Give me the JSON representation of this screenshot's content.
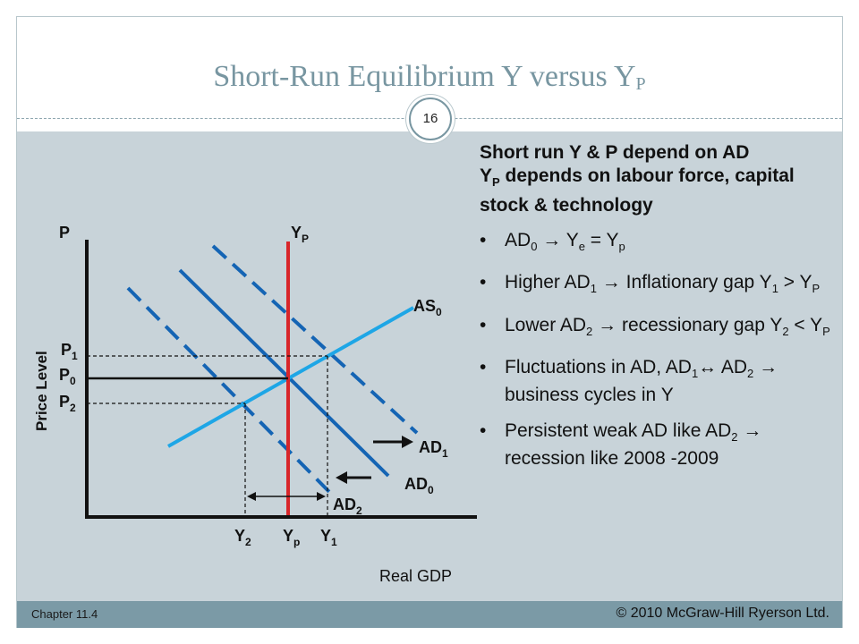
{
  "slide": {
    "title_main": "Short-Run Equilibrium Y  versus Y",
    "title_sub": "P",
    "page_number": "16",
    "footer_left": "Chapter 11.4",
    "footer_right": "© 2010 McGraw-Hill Ryerson Ltd."
  },
  "graph": {
    "y_axis_letter": "P",
    "y_axis_title": "Price Level",
    "x_axis_title": "Real GDP",
    "yp_top": {
      "main": "Y",
      "sub": "P"
    },
    "as_label": {
      "main": "AS",
      "sub": "0"
    },
    "ad1_label": {
      "main": "AD",
      "sub": "1"
    },
    "ad0_label": {
      "main": "AD",
      "sub": "0"
    },
    "ad2_label": {
      "main": "AD",
      "sub": "2"
    },
    "p1_label": {
      "main": "P",
      "sub": "1"
    },
    "p0_label": {
      "main": "P",
      "sub": "0"
    },
    "p2_label": {
      "main": "P",
      "sub": "2"
    },
    "y2_label": {
      "main": "Y",
      "sub": "2"
    },
    "yp_label": {
      "main": "Y",
      "sub": "p"
    },
    "y1_label": {
      "main": "Y",
      "sub": "1"
    },
    "colors": {
      "ad_lines": "#1464b4",
      "as_line": "#1ea6e6",
      "potential_line": "#d8262a",
      "axes": "#111111"
    }
  },
  "text": {
    "heading_line1": "Short run Y & P depend on AD",
    "heading_line2_main": "Y",
    "heading_line2_sub": "P",
    "heading_line2_rest": " depends on labour force, capital stock & technology",
    "bullet_char": "•",
    "bullets": [
      {
        "parts": [
          [
            "AD",
            ""
          ],
          [
            "0",
            "sub"
          ],
          [
            "  →  Y",
            ""
          ],
          [
            "e",
            "sub"
          ],
          [
            " = Y",
            ""
          ],
          [
            "p",
            "sub"
          ]
        ]
      },
      {
        "parts": [
          [
            "Higher AD",
            ""
          ],
          [
            "1",
            "sub"
          ],
          [
            "  →  Inflationary gap Y",
            ""
          ],
          [
            "1",
            "sub"
          ],
          [
            " > Y",
            ""
          ],
          [
            "P",
            "sub"
          ]
        ]
      },
      {
        "parts": [
          [
            "Lower AD",
            ""
          ],
          [
            "2",
            "sub"
          ],
          [
            "  →  recessionary gap Y",
            ""
          ],
          [
            "2",
            "sub"
          ],
          [
            " < Y",
            ""
          ],
          [
            "P",
            "sub"
          ]
        ]
      },
      {
        "parts": [
          [
            "Fluctuations in AD, AD",
            ""
          ],
          [
            "1",
            "sub"
          ],
          [
            "↔ AD",
            ""
          ],
          [
            "2",
            "sub"
          ],
          [
            "  →  business cycles in Y",
            ""
          ]
        ]
      },
      {
        "parts": [
          [
            "Persistent weak AD like AD",
            ""
          ],
          [
            "2",
            "sub"
          ],
          [
            " →  recession like 2008 -2009",
            ""
          ]
        ]
      }
    ]
  }
}
